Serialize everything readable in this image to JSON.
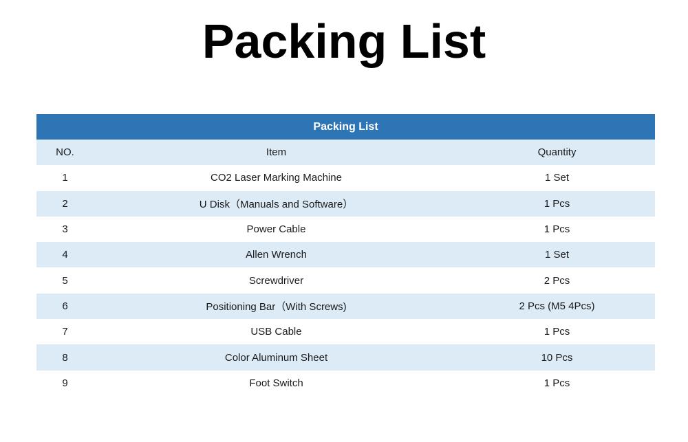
{
  "page": {
    "title": "Packing List"
  },
  "table": {
    "caption": "Packing List",
    "headers": {
      "no": "NO.",
      "item": "Item",
      "quantity": "Quantity"
    },
    "rows": [
      {
        "no": "1",
        "item": "CO2 Laser Marking Machine",
        "quantity": "1 Set"
      },
      {
        "no": "2",
        "item": "U Disk（Manuals and Software）",
        "quantity": "1 Pcs"
      },
      {
        "no": "3",
        "item": "Power Cable",
        "quantity": "1 Pcs"
      },
      {
        "no": "4",
        "item": "Allen Wrench",
        "quantity": "1 Set"
      },
      {
        "no": "5",
        "item": "Screwdriver",
        "quantity": "2 Pcs"
      },
      {
        "no": "6",
        "item": "Positioning Bar（With Screws)",
        "quantity": "2 Pcs (M5 4Pcs)"
      },
      {
        "no": "7",
        "item": "USB Cable",
        "quantity": "1 Pcs"
      },
      {
        "no": "8",
        "item": "Color Aluminum Sheet",
        "quantity": "10 Pcs"
      },
      {
        "no": "9",
        "item": "Foot Switch",
        "quantity": "1 Pcs"
      }
    ]
  },
  "colors": {
    "caption_background": "#2e75b6",
    "shaded_row": "#ddebf7",
    "plain_row": "#ffffff"
  }
}
